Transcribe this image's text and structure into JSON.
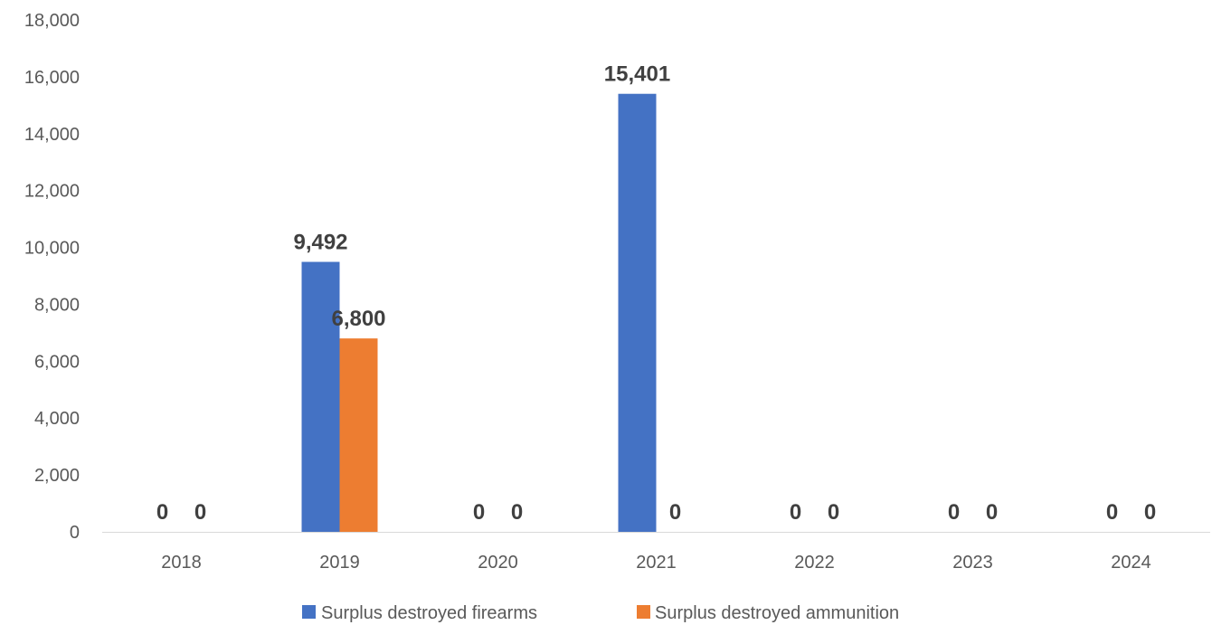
{
  "chart_data": {
    "type": "bar",
    "categories": [
      "2018",
      "2019",
      "2020",
      "2021",
      "2022",
      "2023",
      "2024"
    ],
    "series": [
      {
        "name": "Surplus destroyed firearms",
        "color": "#4472C4",
        "values": [
          0,
          9492,
          0,
          15401,
          0,
          0,
          0
        ],
        "labels": [
          "0",
          "9,492",
          "0",
          "15,401",
          "0",
          "0",
          "0"
        ]
      },
      {
        "name": "Surplus destroyed ammunition",
        "color": "#ED7D31",
        "values": [
          0,
          6800,
          0,
          0,
          0,
          0,
          0
        ],
        "labels": [
          "0",
          "6,800",
          "0",
          "0",
          "0",
          "0",
          "0"
        ]
      }
    ],
    "ylim": [
      0,
      18000
    ],
    "yticks": [
      0,
      2000,
      4000,
      6000,
      8000,
      10000,
      12000,
      14000,
      16000,
      18000
    ],
    "ytick_labels": [
      "0",
      "2,000",
      "4,000",
      "6,000",
      "8,000",
      "10,000",
      "12,000",
      "14,000",
      "16,000",
      "18,000"
    ],
    "grid": false,
    "legend": "bottom",
    "title": "",
    "xlabel": "",
    "ylabel": ""
  }
}
